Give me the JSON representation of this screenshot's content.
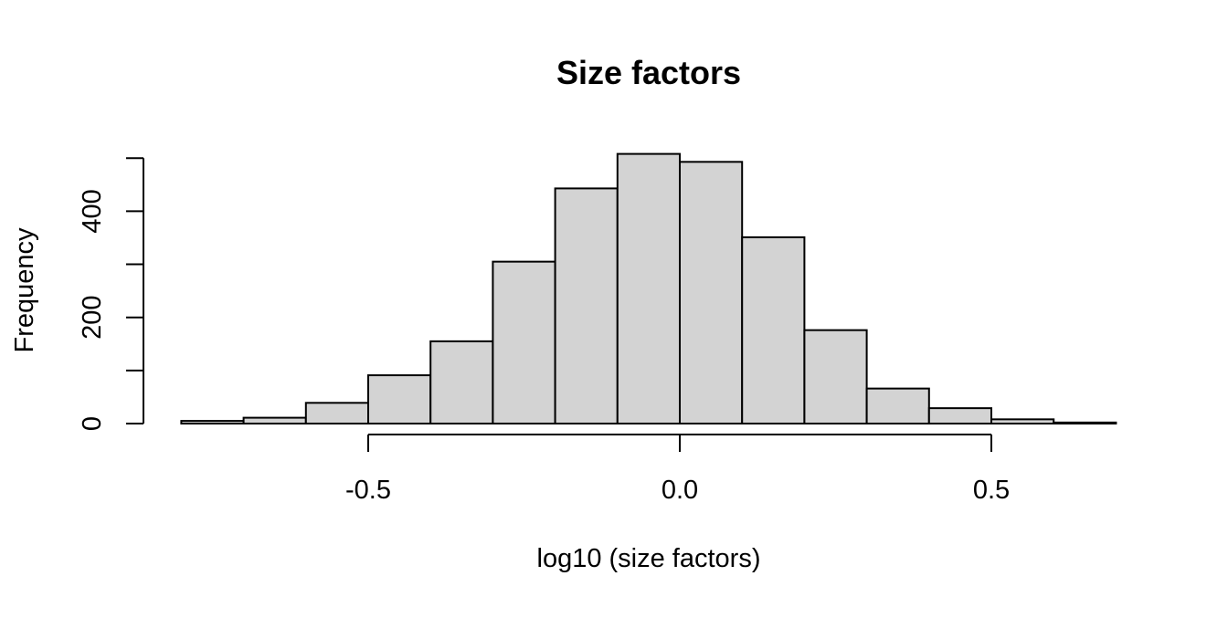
{
  "chart_data": {
    "type": "bar",
    "title": "Size factors",
    "xlabel": "log10 (size factors)",
    "ylabel": "Frequency",
    "bins": [
      [
        -0.8,
        -0.7
      ],
      [
        -0.7,
        -0.6
      ],
      [
        -0.6,
        -0.5
      ],
      [
        -0.5,
        -0.4
      ],
      [
        -0.4,
        -0.3
      ],
      [
        -0.3,
        -0.2
      ],
      [
        -0.2,
        -0.1
      ],
      [
        -0.1,
        0.0
      ],
      [
        0.0,
        0.1
      ],
      [
        0.1,
        0.2
      ],
      [
        0.2,
        0.3
      ],
      [
        0.3,
        0.4
      ],
      [
        0.4,
        0.5
      ],
      [
        0.5,
        0.6
      ],
      [
        0.6,
        0.7
      ]
    ],
    "values": [
      5,
      11,
      39,
      91,
      155,
      305,
      443,
      508,
      493,
      351,
      176,
      66,
      29,
      8,
      2
    ],
    "xlim": [
      -0.8,
      0.7
    ],
    "ylim": [
      0,
      500
    ],
    "x_ticks": [
      -0.5,
      0.0,
      0.5
    ],
    "x_tick_labels": [
      "-0.5",
      "0.0",
      "0.5"
    ],
    "y_ticks": [
      0,
      100,
      200,
      300,
      400,
      500
    ],
    "y_tick_labels": [
      "0",
      "",
      "200",
      "",
      "400",
      ""
    ],
    "bar_fill": "#d3d3d3",
    "bar_stroke": "#000000",
    "grid": false,
    "legend": "none"
  }
}
